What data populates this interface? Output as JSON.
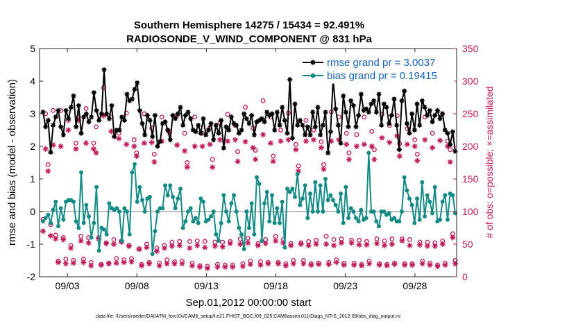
{
  "chart_data": {
    "type": "line",
    "title": "Southern Hemisphere 14275 / 15434 = 92.491%",
    "subtitle": "RADIOSONDE_V_WIND_COMPONENT @ 831 hPa",
    "xlabel": "Sep.01,2012 00:00:00 start",
    "ylabel": "rmse and bias (model - observation)",
    "ylabel_right": "# of obs: o=possible; ×=assimilated",
    "xlim": [
      1,
      31
    ],
    "ylim": [
      -2,
      5
    ],
    "ylim_right": [
      0,
      350
    ],
    "x_ticks": [
      3,
      8,
      13,
      18,
      23,
      28
    ],
    "x_tick_labels": [
      "09/03",
      "09/08",
      "09/13",
      "09/18",
      "09/23",
      "09/28"
    ],
    "y_ticks": [
      -2,
      -1,
      0,
      1,
      2,
      3,
      4,
      5
    ],
    "y_tick_labels": [
      "-2",
      "-1",
      "0",
      "1",
      "2",
      "3",
      "4",
      "5"
    ],
    "y_ticks_right": [
      0,
      50,
      100,
      150,
      200,
      250,
      300,
      350
    ],
    "y_tick_labels_right": [
      "0",
      "50",
      "100",
      "150",
      "200",
      "250",
      "300",
      "350"
    ],
    "legend_position": "top-right",
    "footnote": "data file: /Users/raeder/DAI/ATM_forcXX/CAM6_setup/f.e21.FHIST_BGC.f09_025.CAM6assim.011/Diags_NTrS_2012-09/obs_diag_output.nc",
    "colors": {
      "rmse": "#000000",
      "bias": "#138a84",
      "obs": "#c2185b",
      "zero_line": "#bdbdbd",
      "legend_text": "#1565c0"
    },
    "series": [
      {
        "name": "rmse grand pr = 3.0037",
        "marker": "star",
        "values": [
          3.05,
          2.6,
          2.8,
          1.82,
          2.65,
          2.9,
          3.1,
          2.6,
          2.35,
          3.1,
          2.85,
          3.2,
          3.55,
          2.6,
          3.25,
          2.4,
          2.9,
          3.0,
          2.75,
          2.9,
          3.65,
          3.1,
          2.8,
          3.0,
          4.35,
          3.0,
          2.85,
          3.25,
          2.3,
          2.5,
          2.5,
          2.9,
          2.8,
          3.6,
          3.4,
          3.45,
          3.75,
          3.95,
          3.1,
          2.7,
          2.35,
          2.95,
          2.8,
          2.3,
          2.95,
          2.0,
          2.15,
          2.7,
          2.75,
          2.5,
          2.2,
          2.95,
          2.85,
          3.0,
          3.2,
          2.65,
          2.95,
          3.05,
          2.85,
          2.5,
          2.45,
          2.65,
          2.4,
          2.85,
          2.35,
          2.5,
          2.7,
          2.2,
          2.65,
          2.4,
          2.8,
          1.95,
          2.6,
          2.5,
          2.9,
          2.7,
          2.65,
          2.4,
          2.5,
          3.0,
          2.85,
          2.7,
          2.95,
          2.35,
          2.75,
          2.8,
          2.85,
          2.75,
          3.05,
          2.95,
          3.0,
          2.5,
          3.05,
          2.65,
          3.2,
          2.8,
          2.4,
          4.05,
          2.25,
          3.3,
          2.65,
          2.8,
          2.65,
          2.35,
          2.6,
          2.35,
          3.05,
          2.6,
          3.2,
          2.35,
          2.65,
          3.05,
          1.8,
          2.45,
          4.05,
          3.15,
          2.65,
          2.1,
          3.55,
          3.05,
          2.6,
          3.4,
          3.25,
          2.6,
          2.95,
          3.6,
          3.1,
          3.15,
          3.05,
          3.3,
          3.4,
          3.05,
          3.6,
          2.65,
          3.3,
          3.2,
          2.7,
          2.95,
          3.45,
          2.65,
          1.9,
          3.4,
          3.7,
          2.7,
          2.4,
          3.0,
          2.5,
          3.3,
          2.65,
          3.4,
          3.2,
          2.95,
          3.1,
          2.75,
          2.95,
          3.1,
          2.85,
          3.0,
          2.5,
          2.4,
          2.05,
          2.45,
          1.85
        ]
      },
      {
        "name": "bias grand pr = 0.19415",
        "marker": "dot",
        "values": [
          -0.3,
          -0.2,
          -0.1,
          -0.35,
          0.05,
          0.3,
          -0.45,
          0.1,
          -0.25,
          0.3,
          0.35,
          0.35,
          0.3,
          -0.3,
          -0.5,
          1.2,
          -0.35,
          0.2,
          -0.15,
          -0.8,
          -0.35,
          0.75,
          -1.2,
          -0.5,
          -0.55,
          -0.7,
          0.25,
          0.1,
          0.05,
          0.1,
          0.0,
          -0.9,
          0.1,
          0.0,
          -0.7,
          1.2,
          1.45,
          0.3,
          0.75,
          0.35,
          0.0,
          0.4,
          0.45,
          -1.3,
          -0.6,
          0.0,
          0.1,
          0.1,
          0.8,
          0.5,
          0.8,
          0.45,
          0.1,
          0.4,
          0.7,
          -0.5,
          -0.3,
          0.0,
          0.1,
          -0.3,
          -0.2,
          -0.35,
          0.4,
          0.3,
          -0.3,
          -0.25,
          -0.15,
          0.0,
          -0.7,
          -0.9,
          -0.35,
          0.5,
          0.0,
          -0.3,
          0.25,
          0.5,
          0.0,
          -0.5,
          -0.7,
          -1.15,
          0.0,
          -0.5,
          0.25,
          -0.7,
          1.05,
          0.85,
          -0.9,
          0.25,
          0.6,
          -0.3,
          0.5,
          -0.35,
          0.1,
          -0.35,
          0.3,
          -1.1,
          0.7,
          0.6,
          0.7,
          0.45,
          1.15,
          0.2,
          0.4,
          0.8,
          -0.2,
          0.55,
          0.0,
          0.9,
          0.0,
          0.8,
          0.0,
          1.0,
          0.35,
          0.5,
          0.35,
          0.2,
          0.0,
          0.55,
          -0.35,
          0.75,
          -0.2,
          0.1,
          0.0,
          -0.2,
          -0.3,
          0.05,
          -0.25,
          -0.2,
          1.8,
          0.0,
          0.0,
          -0.3,
          -0.45,
          0.0,
          0.0,
          -0.1,
          -0.05,
          -0.25,
          -0.2,
          -0.3,
          -0.3,
          0.0,
          1.05,
          0.65,
          0.4,
          0.2,
          -0.35,
          0.4,
          -0.25,
          0.9,
          -0.15,
          0.5,
          0.3,
          -0.05,
          0.75,
          -0.3,
          -0.25,
          0.3,
          0.5,
          -0.25,
          0.55,
          0.5,
          -0.05
        ]
      },
      {
        "name": "possible",
        "axis": "right",
        "marker": "circle",
        "values": [
          88,
          250,
          172,
          80,
          255,
          64,
          24,
          255,
          60,
          27,
          240,
          48,
          25,
          205,
          245,
          62,
          27,
          258,
          60,
          22,
          205,
          230,
          60,
          19,
          290,
          52,
          21,
          245,
          57,
          28,
          220,
          55,
          26,
          251,
          48,
          28,
          210,
          190,
          43,
          19,
          250,
          50,
          22,
          228,
          188,
          44,
          21,
          245,
          48,
          26,
          223,
          53,
          23,
          247,
          54,
          24,
          220,
          175,
          54,
          21,
          245,
          55,
          17,
          220,
          54,
          16,
          229,
          180,
          53,
          19,
          236,
          53,
          18,
          249,
          54,
          18,
          232,
          192,
          58,
          20,
          260,
          59,
          24,
          228,
          194,
          51,
          23,
          270,
          57,
          22,
          245,
          185,
          62,
          22,
          225,
          57,
          20,
          251,
          51,
          25,
          203,
          170,
          52,
          25,
          240,
          54,
          20,
          225,
          56,
          21,
          207,
          172,
          62,
          22,
          253,
          57,
          26,
          245,
          58,
          21,
          220,
          190,
          56,
          21,
          218,
          56,
          19,
          245,
          54,
          24,
          223,
          195,
          58,
          20,
          249,
          55,
          19,
          232,
          58,
          21,
          247,
          204,
          58,
          20,
          227,
          57,
          20,
          210,
          188,
          53,
          24,
          245,
          53,
          21,
          220,
          52,
          18,
          250,
          55,
          21,
          208,
          195,
          66,
          25
        ]
      },
      {
        "name": "assimilated",
        "axis": "right",
        "marker": "star",
        "values": [
          70,
          196,
          162,
          63,
          202,
          58,
          22,
          200,
          57,
          20,
          225,
          44,
          21,
          196,
          240,
          55,
          22,
          205,
          52,
          17,
          196,
          190,
          58,
          18,
          247,
          51,
          20,
          223,
          50,
          21,
          212,
          53,
          22,
          203,
          47,
          23,
          200,
          185,
          42,
          17,
          205,
          45,
          20,
          206,
          176,
          39,
          17,
          208,
          44,
          20,
          221,
          47,
          20,
          202,
          48,
          20,
          193,
          168,
          44,
          17,
          200,
          48,
          15,
          200,
          45,
          13,
          203,
          168,
          47,
          15,
          210,
          46,
          15,
          208,
          51,
          15,
          210,
          177,
          50,
          16,
          207,
          52,
          19,
          198,
          180,
          48,
          18,
          218,
          51,
          20,
          205,
          177,
          55,
          20,
          208,
          52,
          17,
          210,
          48,
          20,
          195,
          162,
          50,
          20,
          208,
          48,
          18,
          210,
          50,
          19,
          198,
          165,
          50,
          19,
          208,
          48,
          22,
          210,
          52,
          18,
          203,
          180,
          52,
          18,
          200,
          49,
          17,
          203,
          49,
          20,
          200,
          180,
          51,
          18,
          213,
          48,
          17,
          206,
          50,
          19,
          216,
          185,
          55,
          18,
          203,
          48,
          18,
          200,
          178,
          49,
          20,
          210,
          47,
          18,
          198,
          47,
          16,
          209,
          50,
          18,
          200,
          176,
          60,
          20
        ]
      }
    ]
  }
}
